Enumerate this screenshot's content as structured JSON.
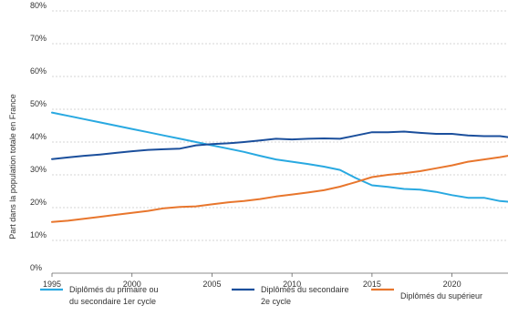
{
  "chart_data": {
    "type": "line",
    "title": "",
    "xlabel": "",
    "ylabel": "Part dans la population totale en France",
    "xlim": [
      1995,
      2023.5
    ],
    "ylim": [
      0,
      80
    ],
    "x_ticks": [
      "1995",
      "2000",
      "2005",
      "2010",
      "2015",
      "2020"
    ],
    "y_ticks": [
      "0%",
      "10%",
      "20%",
      "30%",
      "40%",
      "50%",
      "60%",
      "70%",
      "80%"
    ],
    "grid": true,
    "legend_position": "bottom",
    "x": [
      1995,
      1996,
      1997,
      1998,
      1999,
      2000,
      2001,
      2002,
      2003,
      2004,
      2005,
      2006,
      2007,
      2008,
      2009,
      2010,
      2011,
      2012,
      2013,
      2014,
      2015,
      2016,
      2017,
      2018,
      2019,
      2020,
      2021,
      2022,
      2023,
      2023.5
    ],
    "series": [
      {
        "name_lines": [
          "Diplômés du primaire ou",
          "du secondaire 1er cycle"
        ],
        "color": "#29a9e1",
        "values": [
          49.0,
          48.0,
          47.0,
          46.0,
          45.0,
          44.0,
          43.0,
          42.0,
          41.0,
          40.0,
          39.0,
          38.0,
          37.0,
          35.8,
          34.7,
          34.0,
          33.3,
          32.5,
          31.5,
          29.0,
          26.8,
          26.3,
          25.7,
          25.5,
          24.8,
          23.8,
          23.0,
          23.0,
          22.0,
          21.8
        ]
      },
      {
        "name_lines": [
          "Diplômés du secondaire",
          "2e cycle"
        ],
        "color": "#1b4f9c",
        "values": [
          34.8,
          35.3,
          35.8,
          36.2,
          36.7,
          37.2,
          37.6,
          37.8,
          38.0,
          39.0,
          39.4,
          39.6,
          40.0,
          40.5,
          41.0,
          40.8,
          41.0,
          41.1,
          41.0,
          42.0,
          43.0,
          43.0,
          43.2,
          42.8,
          42.5,
          42.5,
          42.0,
          41.8,
          41.8,
          41.5
        ]
      },
      {
        "name_lines": [
          "Diplômés du supérieur"
        ],
        "color": "#e8762d",
        "values": [
          15.6,
          16.0,
          16.6,
          17.2,
          17.8,
          18.4,
          19.0,
          19.8,
          20.2,
          20.4,
          21.0,
          21.6,
          22.0,
          22.6,
          23.4,
          24.0,
          24.6,
          25.3,
          26.4,
          27.8,
          29.3,
          30.0,
          30.5,
          31.1,
          32.0,
          32.9,
          34.0,
          34.7,
          35.4,
          35.8
        ]
      }
    ]
  }
}
